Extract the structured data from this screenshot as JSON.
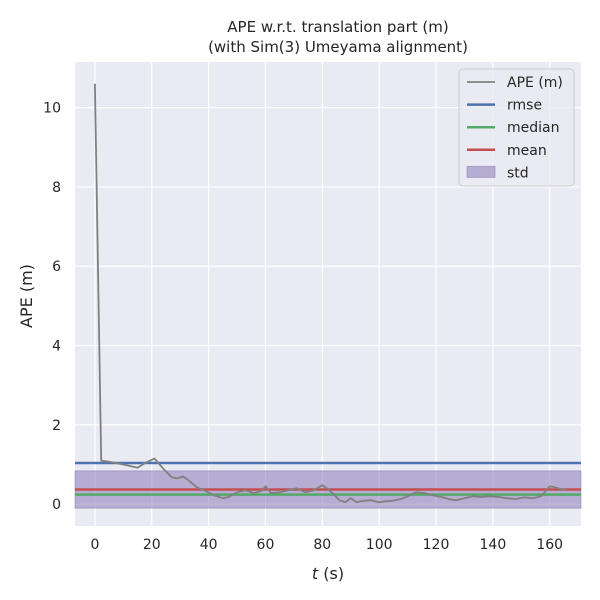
{
  "chart_data": {
    "type": "line",
    "title": "APE w.r.t. translation part (m)",
    "subtitle": "(with Sim(3) Umeyama alignment)",
    "xlabel_italic": "t",
    "xlabel_rest": " (s)",
    "ylabel": "APE (m)",
    "xlim": [
      -7,
      171
    ],
    "ylim": [
      -0.55,
      11.15
    ],
    "xticks": [
      0,
      20,
      40,
      60,
      80,
      100,
      120,
      140,
      160
    ],
    "yticks": [
      0,
      2,
      4,
      6,
      8,
      10
    ],
    "grid": true,
    "legend_position": "top-right",
    "series": [
      {
        "name": "APE (m)",
        "color": "#808080",
        "x": [
          0,
          2.2,
          5,
          10,
          15,
          18,
          21,
          24,
          27,
          29,
          31,
          33,
          36,
          39,
          42,
          45,
          47,
          50,
          53,
          56,
          59,
          60,
          62,
          65,
          68,
          71,
          74,
          77,
          80,
          82,
          84,
          86,
          88,
          90,
          92,
          94,
          97,
          100,
          102,
          105,
          108,
          110,
          113,
          116,
          119,
          122,
          125,
          127,
          130,
          133,
          136,
          139,
          142,
          145,
          148,
          151,
          154,
          157,
          160,
          162,
          164,
          166
        ],
        "values": [
          10.6,
          1.1,
          1.07,
          1.0,
          0.92,
          1.05,
          1.15,
          0.9,
          0.68,
          0.65,
          0.7,
          0.6,
          0.42,
          0.33,
          0.22,
          0.15,
          0.18,
          0.3,
          0.35,
          0.28,
          0.35,
          0.45,
          0.28,
          0.3,
          0.35,
          0.4,
          0.3,
          0.35,
          0.48,
          0.38,
          0.25,
          0.1,
          0.05,
          0.15,
          0.05,
          0.08,
          0.1,
          0.05,
          0.07,
          0.09,
          0.14,
          0.2,
          0.3,
          0.28,
          0.22,
          0.18,
          0.12,
          0.1,
          0.15,
          0.2,
          0.18,
          0.2,
          0.18,
          0.15,
          0.13,
          0.17,
          0.15,
          0.2,
          0.45,
          0.42,
          0.38,
          0.36
        ]
      }
    ],
    "stats": {
      "rmse": 1.04,
      "median": 0.24,
      "mean": 0.37,
      "std_low": -0.1,
      "std_high": 0.84
    },
    "legend": [
      {
        "label": "APE (m)",
        "kind": "line",
        "color": "#808080"
      },
      {
        "label": "rmse",
        "kind": "line",
        "color": "#4c72b0"
      },
      {
        "label": "median",
        "kind": "line",
        "color": "#55a868"
      },
      {
        "label": "mean",
        "kind": "line",
        "color": "#c44e52"
      },
      {
        "label": "std",
        "kind": "patch",
        "color": "#8172b2"
      }
    ]
  }
}
